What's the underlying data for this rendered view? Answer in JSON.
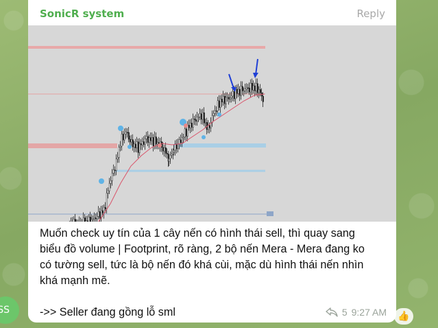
{
  "message": {
    "sender": "SonicR system",
    "reply_label": "Reply",
    "lines": [
      "Muốn check uy tín của 1 cây nến có hình thái sell, thì quay sang",
      "biểu đồ volume | Footprint, rõ ràng, 2 bộ nến Mera - Mera đang ko",
      "có tường sell, tức là bộ nến đó khá cùi, mặc dù hình thái nến nhìn",
      "khá mạnh mẽ."
    ],
    "last_line": "->> Seller đang gồng lỗ sml",
    "reply_count": "5",
    "time": "9:27 AM"
  },
  "avatar": {
    "initials": "SS"
  },
  "reactions": {
    "emoji": "👍"
  },
  "colors": {
    "sender": "#4fae4e",
    "bubble": "#ffffff",
    "chart_background": "#d7d7d7",
    "resistance_zone": "#e8a8a8",
    "support_zone": "#a9cfe6",
    "arrow": "#1f3fd6"
  },
  "icons": {
    "share": "share-arrow-icon",
    "like": "thumbs-up-icon",
    "annotation": "down-arrow-icon"
  }
}
